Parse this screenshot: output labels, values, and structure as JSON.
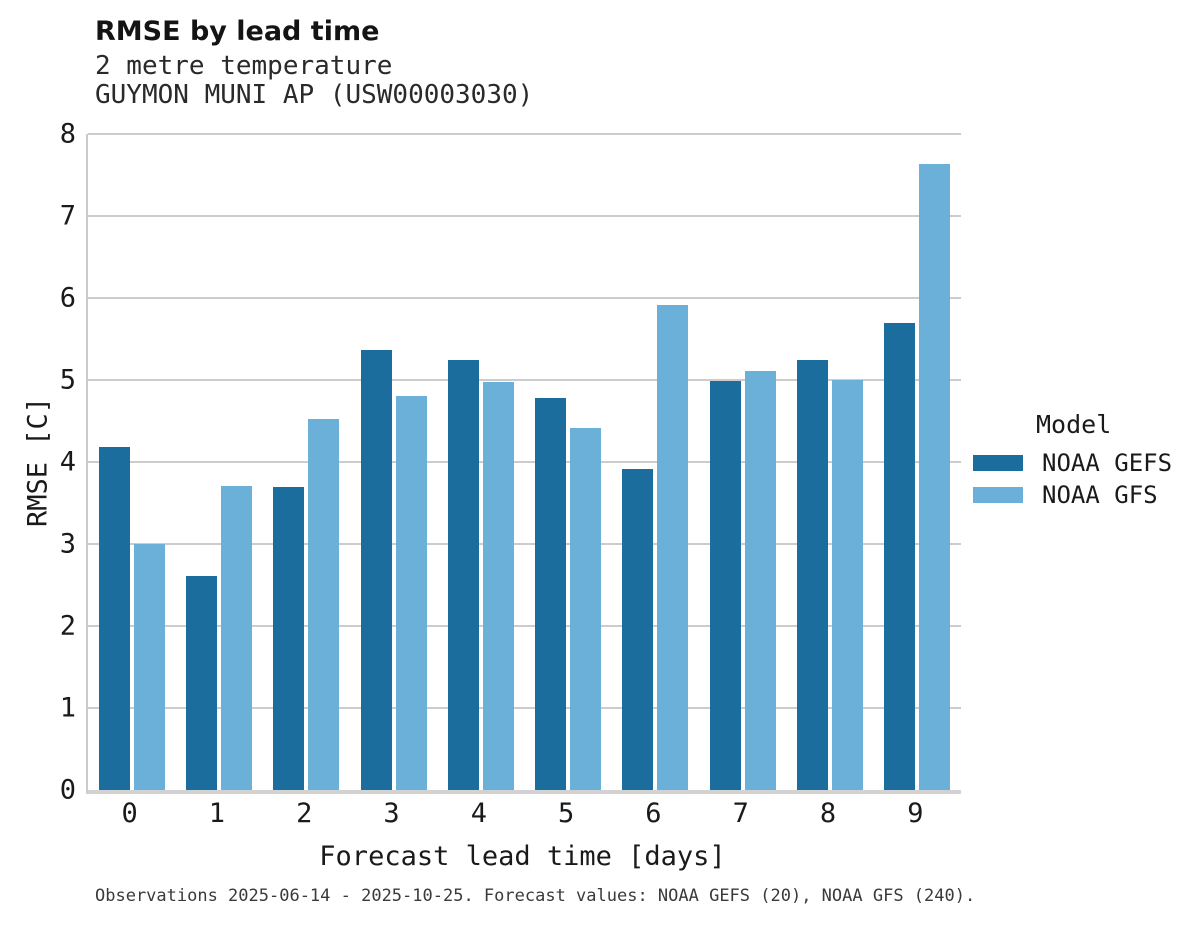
{
  "header": {
    "title": "RMSE by lead time",
    "subtitle": "2 metre temperature",
    "station": "GUYMON MUNI AP (USW00003030)"
  },
  "chart_data": {
    "type": "bar",
    "title": "RMSE by lead time",
    "subtitle": [
      "2 metre temperature",
      "GUYMON MUNI AP (USW00003030)"
    ],
    "categories": [
      "0",
      "1",
      "2",
      "3",
      "4",
      "5",
      "6",
      "7",
      "8",
      "9"
    ],
    "series": [
      {
        "name": "NOAA GEFS",
        "color": "#1b6d9d",
        "values": [
          4.18,
          2.61,
          3.7,
          5.37,
          5.24,
          4.78,
          3.91,
          4.99,
          5.24,
          5.69
        ]
      },
      {
        "name": "NOAA GFS",
        "color": "#6bb0d9",
        "values": [
          3.0,
          3.71,
          4.53,
          4.81,
          4.98,
          4.41,
          5.92,
          5.11,
          5.0,
          7.64
        ]
      }
    ],
    "xlabel": "Forecast lead time [days]",
    "ylabel": "RMSE [C]",
    "ylim": [
      0,
      8
    ],
    "yticks": [
      0,
      1,
      2,
      3,
      4,
      5,
      6,
      7,
      8
    ],
    "grid": "horizontal",
    "legend_title": "Model",
    "legend_position": "right",
    "grid_color": "#cccccc",
    "axis_spine_color": "#cbcbcb"
  },
  "footer": {
    "note": "Observations 2025-06-14 - 2025-10-25. Forecast values: NOAA GEFS (20), NOAA GFS (240)."
  }
}
